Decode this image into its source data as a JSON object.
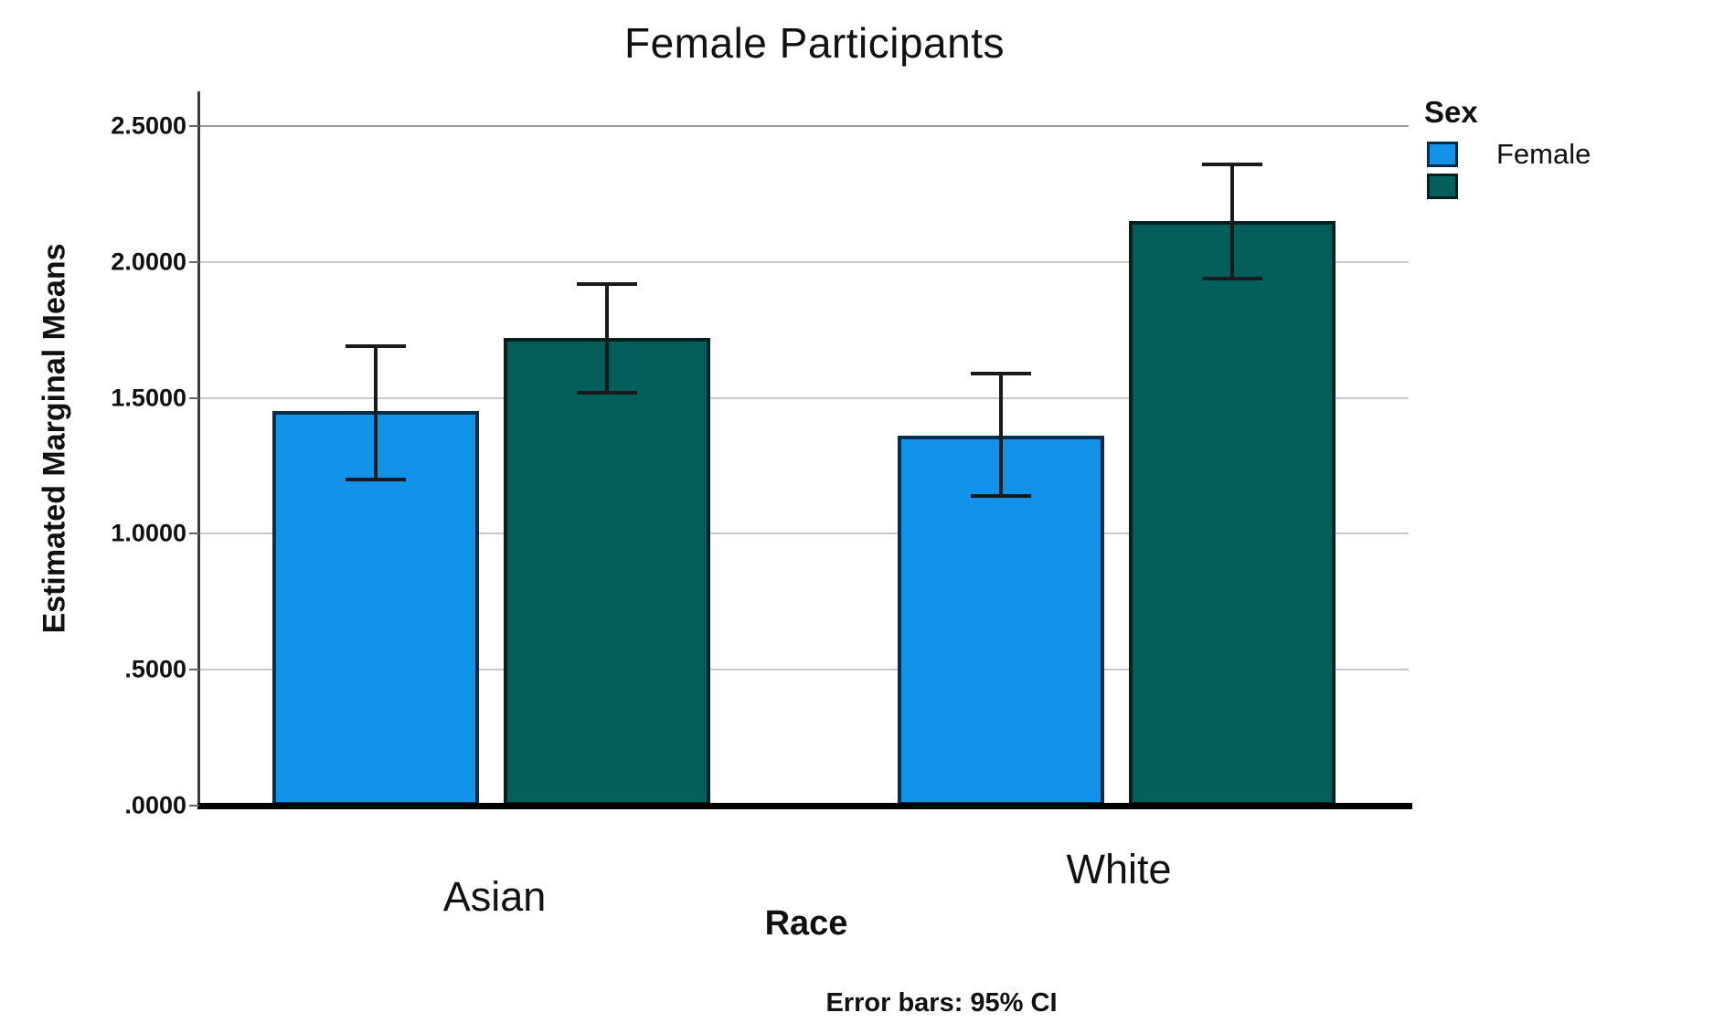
{
  "frame": {
    "background_green": "#47714D",
    "chart_background": "#ffffff"
  },
  "title": {
    "text": "Female Participants"
  },
  "legend": {
    "title": "Sex",
    "entries": [
      {
        "label": "Female",
        "color": "#1292E8",
        "border": "#0A2C49"
      },
      {
        "label": "",
        "color": "#045E5C",
        "border": "#03211F"
      }
    ]
  },
  "chart_data": {
    "type": "bar",
    "title": "Female Participants",
    "categories": [
      "Asian",
      "White"
    ],
    "series": [
      {
        "name": "Female",
        "color": "#1292E8",
        "border": "#0A2C49",
        "values": [
          1.45,
          1.36
        ],
        "ci_low": [
          1.2,
          1.14
        ],
        "ci_high": [
          1.69,
          1.59
        ]
      },
      {
        "name": "",
        "color": "#045E5C",
        "border": "#03211F",
        "values": [
          1.72,
          2.15
        ],
        "ci_low": [
          1.52,
          1.94
        ],
        "ci_high": [
          1.92,
          2.36
        ]
      }
    ],
    "xlabel": "Race",
    "ylabel": "Estimated Marginal Means",
    "yticks": [
      "2.5000",
      "2.0000",
      "1.5000",
      "1.0000",
      ".5000",
      ".0000"
    ],
    "ytick_values": [
      2.5,
      2.0,
      1.5,
      1.0,
      0.5,
      0.0
    ],
    "ylim": [
      0,
      2.63
    ],
    "grid": true,
    "gridline_color": "#c9c9c9",
    "top_gridline_color": "#9b9b9b",
    "legend_position": "top-right",
    "footnote": "Error bars: 95% CI",
    "error_bar_color": "#1a1a1a"
  }
}
